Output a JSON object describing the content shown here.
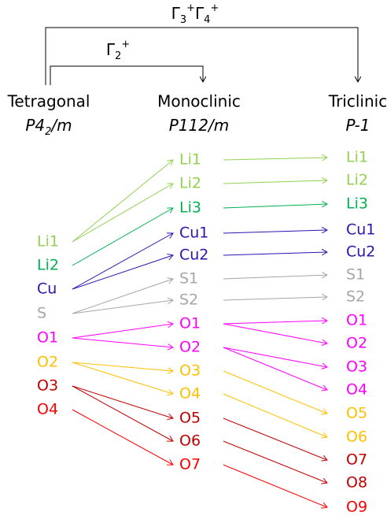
{
  "transitions": [
    {
      "parts": [
        {
          "text": "Γ"
        },
        {
          "text": "3",
          "style": "sub"
        },
        {
          "text": "+",
          "style": "sup"
        },
        {
          "text": "Γ"
        },
        {
          "text": "4",
          "style": "sub"
        },
        {
          "text": "+",
          "style": "sup"
        }
      ]
    },
    {
      "parts": [
        {
          "text": "Γ"
        },
        {
          "text": "2",
          "style": "sub"
        },
        {
          "text": "+",
          "style": "sup"
        }
      ]
    }
  ],
  "columns": [
    {
      "name": "Tetragonal",
      "group": [
        {
          "text": "P4"
        },
        {
          "text": "2",
          "style": "sub"
        },
        {
          "text": "/m"
        }
      ],
      "atoms": [
        {
          "label": "Li1",
          "color": "#92d050"
        },
        {
          "label": "Li2",
          "color": "#00b050"
        },
        {
          "label": "Cu",
          "color": "#3010b0"
        },
        {
          "label": "S",
          "color": "#a6a6a6"
        },
        {
          "label": "O1",
          "color": "#ff00ff"
        },
        {
          "label": "O2",
          "color": "#ffc000"
        },
        {
          "label": "O3",
          "color": "#c00000"
        },
        {
          "label": "O4",
          "color": "#ff0000"
        }
      ]
    },
    {
      "name": "Monoclinic",
      "group": [
        {
          "text": "P112/m"
        }
      ],
      "atoms": [
        {
          "label": "Li1",
          "color": "#92d050"
        },
        {
          "label": "Li2",
          "color": "#92d050"
        },
        {
          "label": "Li3",
          "color": "#00b050"
        },
        {
          "label": "Cu1",
          "color": "#3010b0"
        },
        {
          "label": "Cu2",
          "color": "#3010b0"
        },
        {
          "label": "S1",
          "color": "#a6a6a6"
        },
        {
          "label": "S2",
          "color": "#a6a6a6"
        },
        {
          "label": "O1",
          "color": "#ff00ff"
        },
        {
          "label": "O2",
          "color": "#ff00ff"
        },
        {
          "label": "O3",
          "color": "#ffc000"
        },
        {
          "label": "O4",
          "color": "#ffc000"
        },
        {
          "label": "O5",
          "color": "#c00000"
        },
        {
          "label": "O6",
          "color": "#c00000"
        },
        {
          "label": "O7",
          "color": "#ff0000"
        }
      ]
    },
    {
      "name": "Triclinic",
      "group": [
        {
          "text": "P-1"
        }
      ],
      "atoms": [
        {
          "label": "Li1",
          "color": "#92d050"
        },
        {
          "label": "Li2",
          "color": "#92d050"
        },
        {
          "label": "Li3",
          "color": "#00b050"
        },
        {
          "label": "Cu1",
          "color": "#3010b0"
        },
        {
          "label": "Cu2",
          "color": "#3010b0"
        },
        {
          "label": "S1",
          "color": "#a6a6a6"
        },
        {
          "label": "S2",
          "color": "#a6a6a6"
        },
        {
          "label": "O1",
          "color": "#ff00ff"
        },
        {
          "label": "O2",
          "color": "#ff00ff"
        },
        {
          "label": "O3",
          "color": "#ff00ff"
        },
        {
          "label": "O4",
          "color": "#ff00ff"
        },
        {
          "label": "O5",
          "color": "#ffc000"
        },
        {
          "label": "O6",
          "color": "#ffc000"
        },
        {
          "label": "O7",
          "color": "#c00000"
        },
        {
          "label": "O8",
          "color": "#c00000"
        },
        {
          "label": "O9",
          "color": "#ff0000"
        }
      ]
    }
  ]
}
